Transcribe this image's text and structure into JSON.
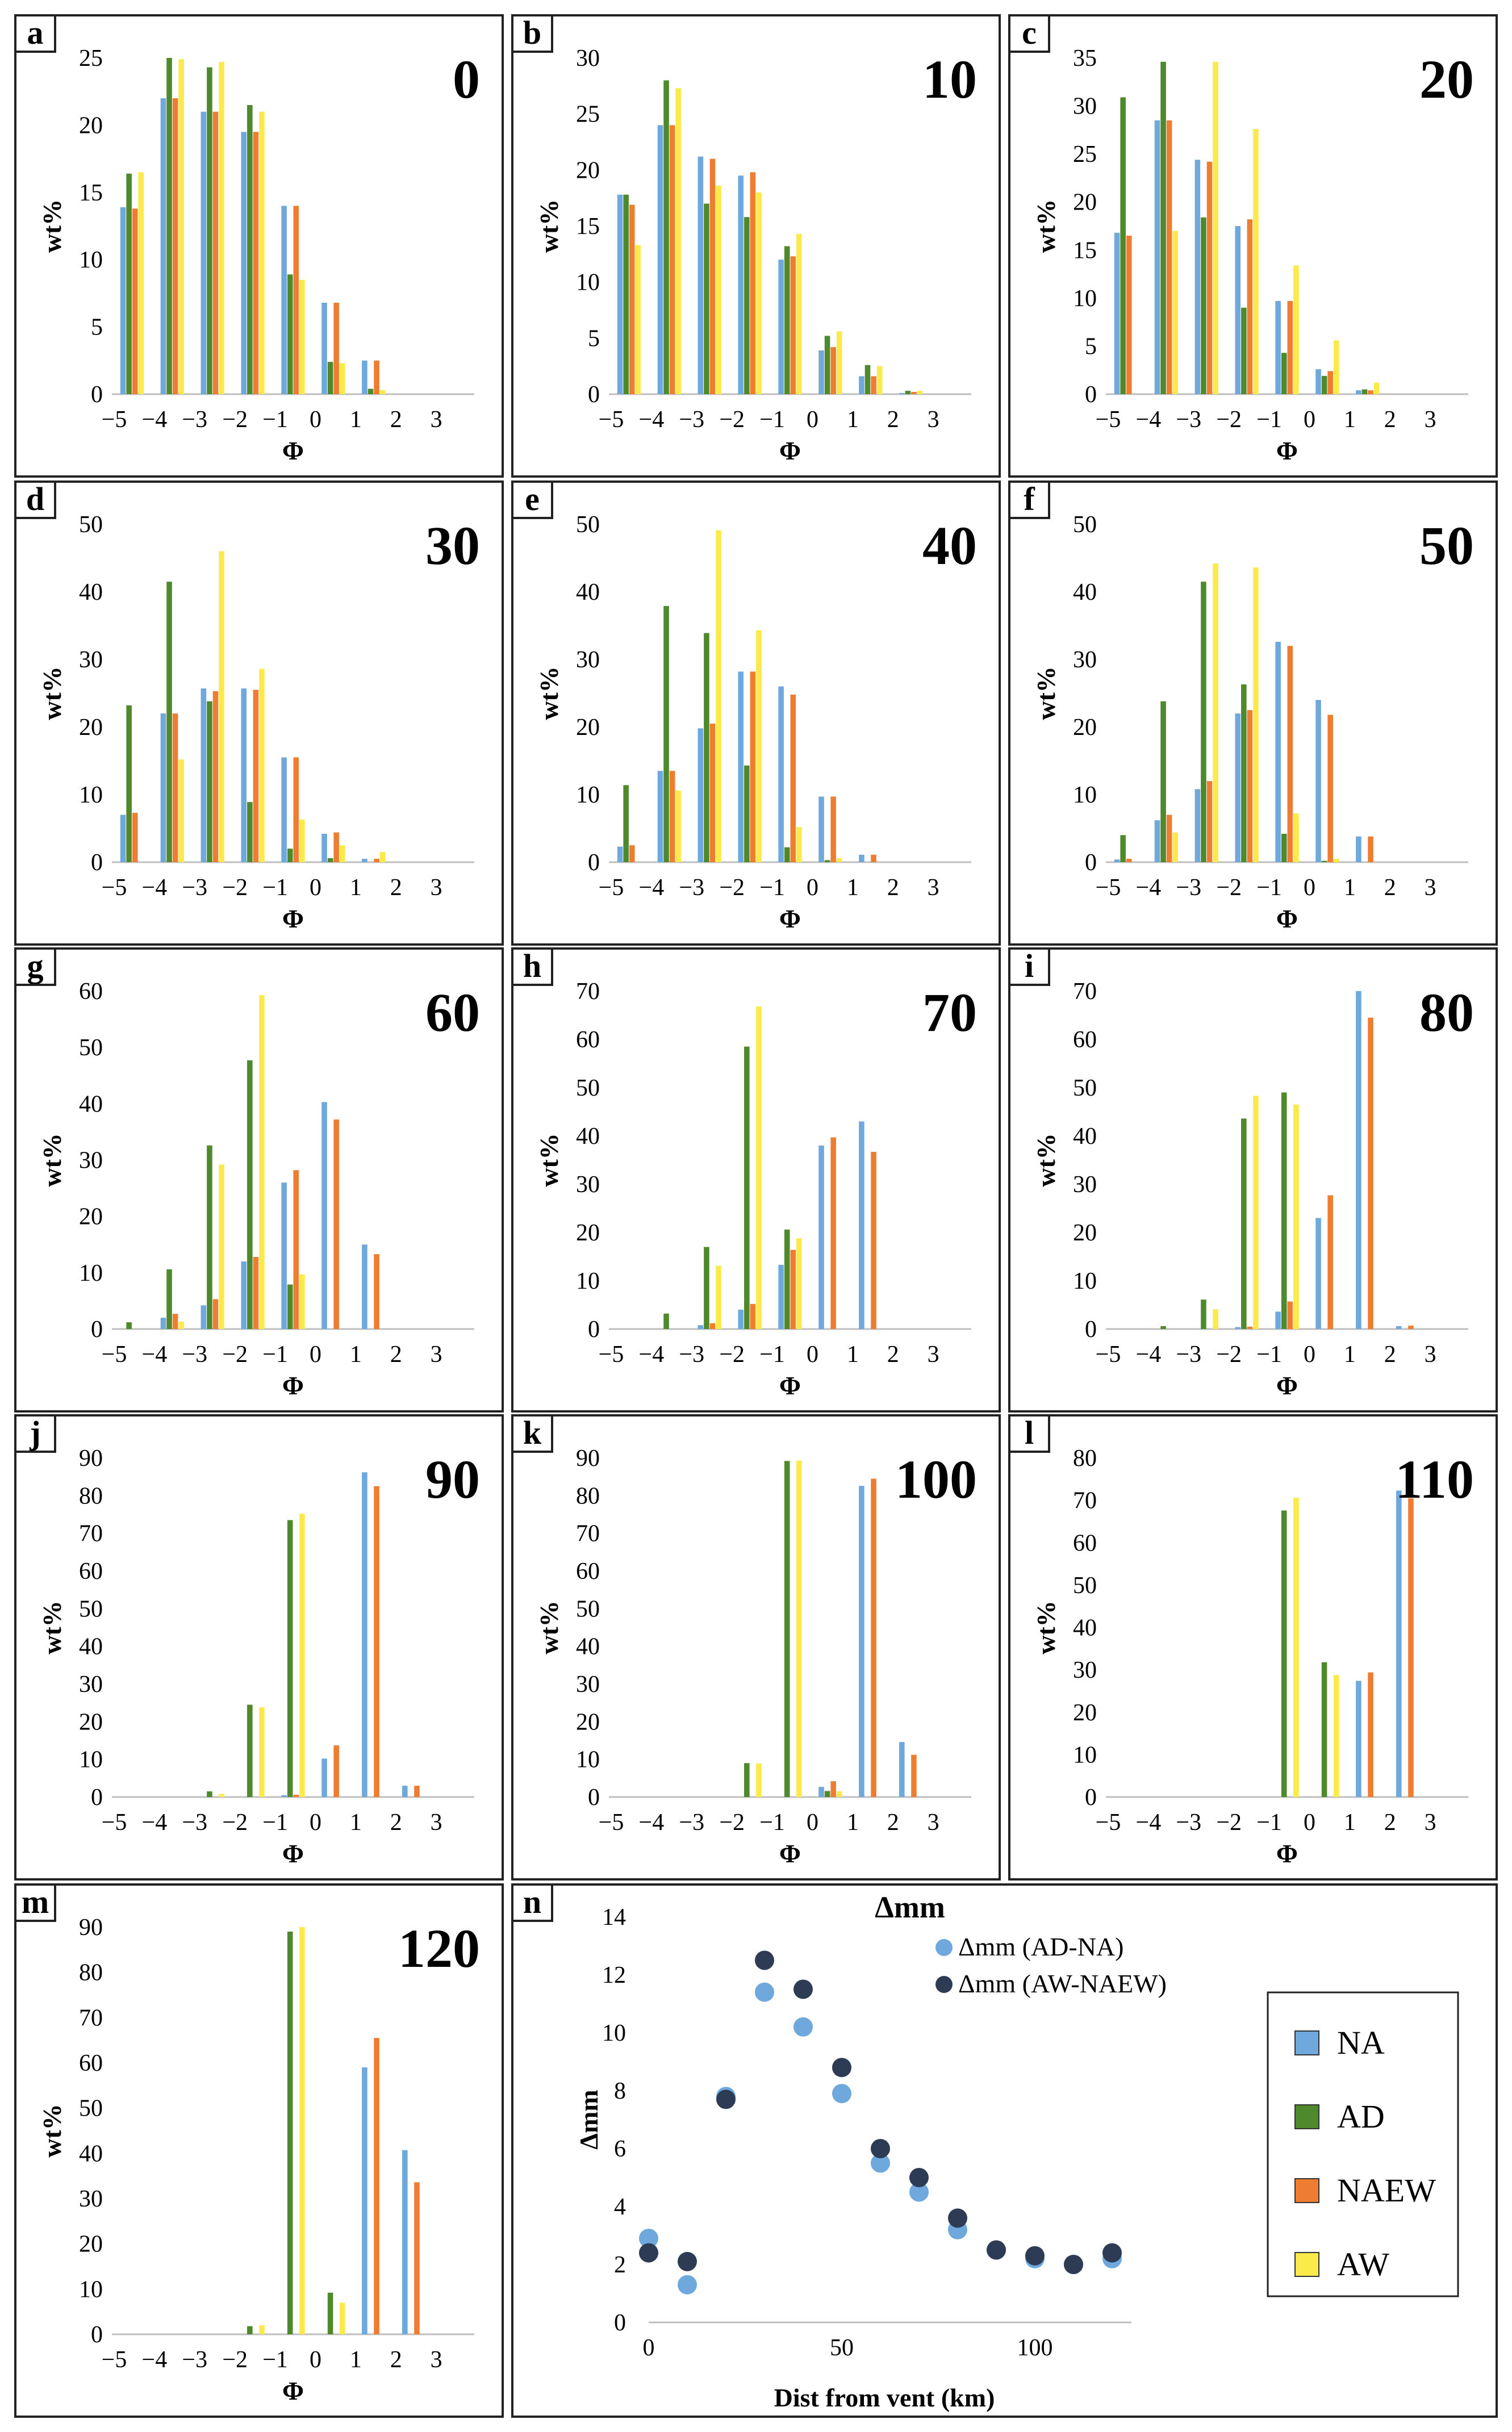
{
  "colors": {
    "NA": "#6fa8dc",
    "AD": "#4e8a2b",
    "NAEW": "#ee7d31",
    "AW": "#fbea4a"
  },
  "common": {
    "xlabel": "Φ",
    "ylabel": "wt%"
  },
  "chart_data": [
    {
      "type": "bar",
      "panel": "a",
      "title": "0",
      "xlabel": "Φ",
      "ylabel": "wt%",
      "categories": [
        "−5",
        "−4",
        "−3",
        "−2",
        "−1",
        "0",
        "1",
        "2",
        "3"
      ],
      "ylim": [
        0,
        25
      ],
      "yticks": [
        0,
        5,
        10,
        15,
        20,
        25
      ],
      "series": [
        {
          "name": "NA",
          "values": [
            13.9,
            22,
            21,
            19.5,
            14,
            6.8,
            2.5,
            0,
            0
          ]
        },
        {
          "name": "AD",
          "values": [
            16.4,
            25,
            24.3,
            21.5,
            8.9,
            2.4,
            0.4,
            0,
            0
          ]
        },
        {
          "name": "NAEW",
          "values": [
            13.8,
            22,
            21,
            19.5,
            14,
            6.8,
            2.5,
            0,
            0
          ]
        },
        {
          "name": "AW",
          "values": [
            16.5,
            24.9,
            24.7,
            21,
            8.5,
            2.3,
            0.3,
            0,
            0
          ]
        }
      ]
    },
    {
      "type": "bar",
      "panel": "b",
      "title": "10",
      "xlabel": "Φ",
      "ylabel": "wt%",
      "categories": [
        "−5",
        "−4",
        "−3",
        "−2",
        "−1",
        "0",
        "1",
        "2",
        "3"
      ],
      "ylim": [
        0,
        30
      ],
      "yticks": [
        0,
        5,
        10,
        15,
        20,
        25,
        30
      ],
      "series": [
        {
          "name": "NA",
          "values": [
            17.8,
            24,
            21.2,
            19.5,
            12,
            3.9,
            1.6,
            0.1,
            0
          ]
        },
        {
          "name": "AD",
          "values": [
            17.8,
            28,
            17,
            15.8,
            13.2,
            5.2,
            2.6,
            0.3,
            0
          ]
        },
        {
          "name": "NAEW",
          "values": [
            16.9,
            24,
            21,
            19.8,
            12.3,
            4.2,
            1.6,
            0.2,
            0
          ]
        },
        {
          "name": "AW",
          "values": [
            13.3,
            27.3,
            18.6,
            18,
            14.3,
            5.6,
            2.5,
            0.3,
            0
          ]
        }
      ]
    },
    {
      "type": "bar",
      "panel": "c",
      "title": "20",
      "xlabel": "Φ",
      "ylabel": "wt%",
      "categories": [
        "−5",
        "−4",
        "−3",
        "−2",
        "−1",
        "0",
        "1",
        "2",
        "3"
      ],
      "ylim": [
        0,
        35
      ],
      "yticks": [
        0,
        5,
        10,
        15,
        20,
        25,
        30,
        35
      ],
      "series": [
        {
          "name": "NA",
          "values": [
            16.8,
            28.5,
            24.4,
            17.5,
            9.7,
            2.6,
            0.4,
            0,
            0
          ]
        },
        {
          "name": "AD",
          "values": [
            30.9,
            34.6,
            18.4,
            9,
            4.3,
            1.9,
            0.5,
            0,
            0
          ]
        },
        {
          "name": "NAEW",
          "values": [
            16.5,
            28.5,
            24.2,
            18.2,
            9.7,
            2.4,
            0.4,
            0,
            0
          ]
        },
        {
          "name": "AW",
          "values": [
            0,
            17,
            34.6,
            27.6,
            13.4,
            5.6,
            1.2,
            0,
            0
          ]
        }
      ]
    },
    {
      "type": "bar",
      "panel": "d",
      "title": "30",
      "xlabel": "Φ",
      "ylabel": "wt%",
      "categories": [
        "−5",
        "−4",
        "−3",
        "−2",
        "−1",
        "0",
        "1",
        "2",
        "3"
      ],
      "ylim": [
        0,
        50
      ],
      "yticks": [
        0,
        10,
        20,
        30,
        40,
        50
      ],
      "series": [
        {
          "name": "NA",
          "values": [
            7,
            22,
            25.7,
            25.7,
            15.5,
            4.2,
            0.5,
            0,
            0
          ]
        },
        {
          "name": "AD",
          "values": [
            23.2,
            41.5,
            23.8,
            8.9,
            2,
            0.6,
            0,
            0,
            0
          ]
        },
        {
          "name": "NAEW",
          "values": [
            7.3,
            22,
            25.3,
            25.5,
            15.5,
            4.4,
            0.5,
            0,
            0
          ]
        },
        {
          "name": "AW",
          "values": [
            0,
            15.2,
            46,
            28.6,
            6.3,
            2.5,
            1.5,
            0,
            0
          ]
        }
      ]
    },
    {
      "type": "bar",
      "panel": "e",
      "title": "40",
      "xlabel": "Φ",
      "ylabel": "wt%",
      "categories": [
        "−5",
        "−4",
        "−3",
        "−2",
        "−1",
        "0",
        "1",
        "2",
        "3"
      ],
      "ylim": [
        0,
        50
      ],
      "yticks": [
        0,
        10,
        20,
        30,
        40,
        50
      ],
      "series": [
        {
          "name": "NA",
          "values": [
            2.3,
            13.5,
            19.8,
            28.2,
            26,
            9.7,
            1.1,
            0,
            0
          ]
        },
        {
          "name": "AD",
          "values": [
            11.4,
            37.9,
            33.9,
            14.3,
            2.2,
            0.3,
            0,
            0,
            0
          ]
        },
        {
          "name": "NAEW",
          "values": [
            2.5,
            13.5,
            20.5,
            28.2,
            24.8,
            9.7,
            1.1,
            0,
            0
          ]
        },
        {
          "name": "AW",
          "values": [
            0,
            10.6,
            49.1,
            34.3,
            5.2,
            0.6,
            0,
            0,
            0
          ]
        }
      ]
    },
    {
      "type": "bar",
      "panel": "f",
      "title": "50",
      "xlabel": "Φ",
      "ylabel": "wt%",
      "categories": [
        "−5",
        "−4",
        "−3",
        "−2",
        "−1",
        "0",
        "1",
        "2",
        "3"
      ],
      "ylim": [
        0,
        50
      ],
      "yticks": [
        0,
        10,
        20,
        30,
        40,
        50
      ],
      "series": [
        {
          "name": "NA",
          "values": [
            0.4,
            6.2,
            10.8,
            22,
            32.6,
            24,
            3.8,
            0,
            0
          ]
        },
        {
          "name": "AD",
          "values": [
            4,
            23.8,
            41.5,
            26.3,
            4.2,
            0.2,
            0,
            0,
            0
          ]
        },
        {
          "name": "NAEW",
          "values": [
            0.5,
            7,
            12,
            22.5,
            32,
            21.8,
            3.8,
            0,
            0
          ]
        },
        {
          "name": "AW",
          "values": [
            0,
            4.4,
            44.2,
            43.6,
            7.2,
            0.5,
            0,
            0,
            0
          ]
        }
      ]
    },
    {
      "type": "bar",
      "panel": "g",
      "title": "60",
      "xlabel": "Φ",
      "ylabel": "wt%",
      "categories": [
        "−5",
        "−4",
        "−3",
        "−2",
        "−1",
        "0",
        "1",
        "2",
        "3"
      ],
      "ylim": [
        0,
        60
      ],
      "yticks": [
        0,
        10,
        20,
        30,
        40,
        50,
        60
      ],
      "series": [
        {
          "name": "NA",
          "values": [
            0,
            2,
            4.2,
            12,
            26,
            40.3,
            15,
            0,
            0
          ]
        },
        {
          "name": "AD",
          "values": [
            1.2,
            10.6,
            32.6,
            47.7,
            7.9,
            0,
            0,
            0,
            0
          ]
        },
        {
          "name": "NAEW",
          "values": [
            0,
            2.7,
            5.3,
            12.8,
            28.2,
            37.2,
            13.3,
            0,
            0
          ]
        },
        {
          "name": "AW",
          "values": [
            0,
            1.3,
            29.2,
            59.3,
            9.7,
            0,
            0,
            0,
            0
          ]
        }
      ]
    },
    {
      "type": "bar",
      "panel": "h",
      "title": "70",
      "xlabel": "Φ",
      "ylabel": "wt%",
      "categories": [
        "−5",
        "−4",
        "−3",
        "−2",
        "−1",
        "0",
        "1",
        "2",
        "3"
      ],
      "ylim": [
        0,
        70
      ],
      "yticks": [
        0,
        10,
        20,
        30,
        40,
        50,
        60,
        70
      ],
      "series": [
        {
          "name": "NA",
          "values": [
            0,
            0,
            0.8,
            4,
            13.3,
            38,
            43,
            0,
            0
          ]
        },
        {
          "name": "AD",
          "values": [
            0,
            3.2,
            17,
            58.5,
            20.6,
            0,
            0,
            0,
            0
          ]
        },
        {
          "name": "NAEW",
          "values": [
            0,
            0,
            1.2,
            5.2,
            16.4,
            39.7,
            36.7,
            0,
            0
          ]
        },
        {
          "name": "AW",
          "values": [
            0,
            0,
            13.1,
            66.8,
            18.8,
            0,
            0,
            0,
            0
          ]
        }
      ]
    },
    {
      "type": "bar",
      "panel": "i",
      "title": "80",
      "xlabel": "Φ",
      "ylabel": "wt%",
      "categories": [
        "−5",
        "−4",
        "−3",
        "−2",
        "−1",
        "0",
        "1",
        "2",
        "3"
      ],
      "ylim": [
        0,
        70
      ],
      "yticks": [
        0,
        10,
        20,
        30,
        40,
        50,
        60,
        70
      ],
      "series": [
        {
          "name": "NA",
          "values": [
            0,
            0,
            0,
            0.4,
            3.6,
            23,
            70,
            0.6,
            0
          ]
        },
        {
          "name": "AD",
          "values": [
            0,
            0.6,
            6.1,
            43.6,
            49,
            0,
            0,
            0,
            0
          ]
        },
        {
          "name": "NAEW",
          "values": [
            0,
            0,
            0,
            0.5,
            5.7,
            27.7,
            64.5,
            0.7,
            0
          ]
        },
        {
          "name": "AW",
          "values": [
            0,
            0,
            4.1,
            48.3,
            46.5,
            0,
            0,
            0,
            0
          ]
        }
      ]
    },
    {
      "type": "bar",
      "panel": "j",
      "title": "90",
      "xlabel": "Φ",
      "ylabel": "wt%",
      "categories": [
        "−5",
        "−4",
        "−3",
        "−2",
        "−1",
        "0",
        "1",
        "2",
        "3"
      ],
      "ylim": [
        0,
        90
      ],
      "yticks": [
        0,
        10,
        20,
        30,
        40,
        50,
        60,
        70,
        80,
        90
      ],
      "series": [
        {
          "name": "NA",
          "values": [
            0,
            0,
            0,
            0,
            0.5,
            10.2,
            86.2,
            3,
            0
          ]
        },
        {
          "name": "AD",
          "values": [
            0,
            0,
            1.5,
            24.5,
            73.5,
            0,
            0,
            0,
            0
          ]
        },
        {
          "name": "NAEW",
          "values": [
            0,
            0,
            0,
            0,
            0.6,
            13.7,
            82.5,
            3,
            0
          ]
        },
        {
          "name": "AW",
          "values": [
            0,
            0,
            0.8,
            23.8,
            75.2,
            0,
            0,
            0,
            0
          ]
        }
      ]
    },
    {
      "type": "bar",
      "panel": "k",
      "title": "100",
      "xlabel": "Φ",
      "ylabel": "wt%",
      "categories": [
        "−5",
        "−4",
        "−3",
        "−2",
        "−1",
        "0",
        "1",
        "2",
        "3"
      ],
      "ylim": [
        0,
        90
      ],
      "yticks": [
        0,
        10,
        20,
        30,
        40,
        50,
        60,
        70,
        80,
        90
      ],
      "series": [
        {
          "name": "NA",
          "values": [
            0,
            0,
            0,
            0,
            0,
            2.7,
            82.6,
            14.6,
            0
          ]
        },
        {
          "name": "AD",
          "values": [
            0,
            0,
            0,
            9,
            89.2,
            1.6,
            0,
            0,
            0
          ]
        },
        {
          "name": "NAEW",
          "values": [
            0,
            0,
            0,
            0,
            0,
            4.2,
            84.5,
            11.2,
            0
          ]
        },
        {
          "name": "AW",
          "values": [
            0,
            0,
            0,
            8.9,
            89.3,
            1.5,
            0,
            0,
            0
          ]
        }
      ]
    },
    {
      "type": "bar",
      "panel": "l",
      "title": "110",
      "xlabel": "Φ",
      "ylabel": "wt%",
      "categories": [
        "−5",
        "−4",
        "−3",
        "−2",
        "−1",
        "0",
        "1",
        "2",
        "3"
      ],
      "ylim": [
        0,
        80
      ],
      "yticks": [
        0,
        10,
        20,
        30,
        40,
        50,
        60,
        70,
        80
      ],
      "series": [
        {
          "name": "NA",
          "values": [
            0,
            0,
            0,
            0,
            0,
            0,
            27.4,
            72.3,
            0
          ]
        },
        {
          "name": "AD",
          "values": [
            0,
            0,
            0,
            0,
            67.6,
            31.8,
            0,
            0,
            0
          ]
        },
        {
          "name": "NAEW",
          "values": [
            0,
            0,
            0,
            0,
            0,
            0,
            29.4,
            70.5,
            0
          ]
        },
        {
          "name": "AW",
          "values": [
            0,
            0,
            0,
            0,
            70.6,
            28.8,
            0,
            0,
            0
          ]
        }
      ]
    },
    {
      "type": "bar",
      "panel": "m",
      "title": "120",
      "xlabel": "Φ",
      "ylabel": "wt%",
      "categories": [
        "−5",
        "−4",
        "−3",
        "−2",
        "−1",
        "0",
        "1",
        "2",
        "3"
      ],
      "ylim": [
        0,
        90
      ],
      "yticks": [
        0,
        10,
        20,
        30,
        40,
        50,
        60,
        70,
        80,
        90
      ],
      "series": [
        {
          "name": "NA",
          "values": [
            0,
            0,
            0,
            0,
            0,
            0,
            59,
            40.7,
            0
          ]
        },
        {
          "name": "AD",
          "values": [
            0,
            0,
            0,
            1.8,
            89,
            9.2,
            0,
            0,
            0
          ]
        },
        {
          "name": "NAEW",
          "values": [
            0,
            0,
            0,
            0,
            0,
            0,
            65.5,
            33.6,
            0
          ]
        },
        {
          "name": "AW",
          "values": [
            0,
            0,
            0,
            2,
            90,
            7,
            0,
            0,
            0
          ]
        }
      ]
    },
    {
      "type": "scatter",
      "panel": "n",
      "title": "Δmm",
      "xlabel": "Dist from vent (km)",
      "ylabel": "Δmm",
      "xlim": [
        0,
        125
      ],
      "ylim": [
        0,
        14
      ],
      "xticks": [
        0,
        50,
        100
      ],
      "yticks": [
        0,
        2,
        4,
        6,
        8,
        10,
        12,
        14
      ],
      "x": [
        0,
        10,
        20,
        30,
        40,
        50,
        60,
        70,
        80,
        90,
        100,
        110,
        120
      ],
      "series": [
        {
          "name": "Δmm (AD-NA)",
          "color": "#6fa8dc",
          "values": [
            2.9,
            1.3,
            7.8,
            11.4,
            10.2,
            7.9,
            5.5,
            4.5,
            3.2,
            2.5,
            2.2,
            2.0,
            2.2
          ]
        },
        {
          "name": "Δmm (AW-NAEW)",
          "color": "#2e3b55",
          "values": [
            2.4,
            2.1,
            7.7,
            12.5,
            11.5,
            8.8,
            6.0,
            5.0,
            3.6,
            2.5,
            2.3,
            2.0,
            2.4
          ]
        }
      ]
    }
  ],
  "legend": {
    "items": [
      "NA",
      "AD",
      "NAEW",
      "AW"
    ]
  }
}
